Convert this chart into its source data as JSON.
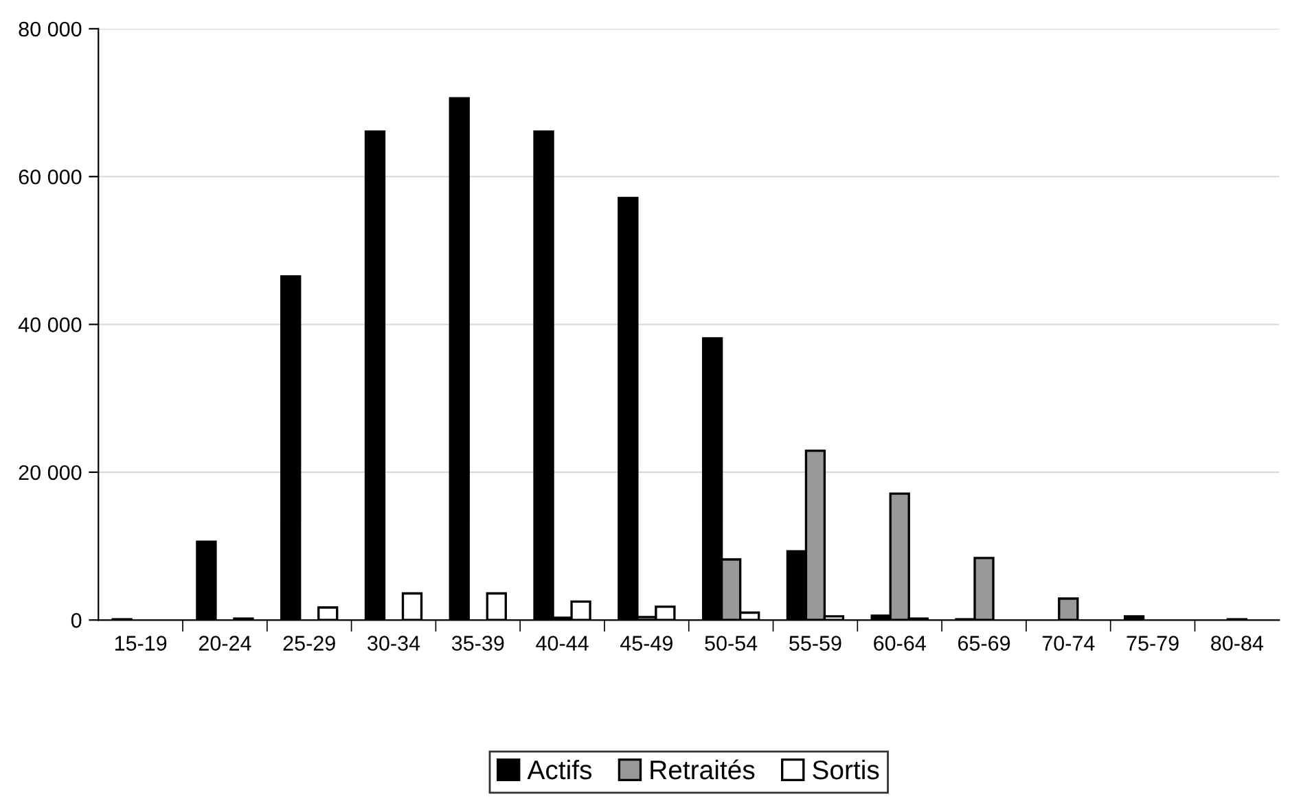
{
  "chart_data": {
    "type": "bar",
    "categories": [
      "15-19",
      "20-24",
      "25-29",
      "30-34",
      "35-39",
      "40-44",
      "45-49",
      "50-54",
      "55-59",
      "60-64",
      "65-69",
      "70-74",
      "75-79",
      "80-84"
    ],
    "series": [
      {
        "name": "Actifs",
        "color": "#000000",
        "values": [
          100,
          10600,
          46500,
          66100,
          70600,
          66100,
          57100,
          38100,
          9300,
          600,
          100,
          null,
          500,
          null
        ]
      },
      {
        "name": "Retraités",
        "color": "#999999",
        "values": [
          null,
          null,
          null,
          null,
          null,
          300,
          400,
          8200,
          22900,
          17100,
          8400,
          2900,
          null,
          100
        ]
      },
      {
        "name": "Sortis",
        "color": "#ffffff",
        "values": [
          null,
          200,
          1700,
          3600,
          3600,
          2500,
          1800,
          1000,
          500,
          200,
          null,
          null,
          null,
          null
        ]
      }
    ],
    "ylim": [
      0,
      80000
    ],
    "yticks": [
      {
        "value": 0,
        "label": "0"
      },
      {
        "value": 20000,
        "label": "20 000"
      },
      {
        "value": 40000,
        "label": "40 000"
      },
      {
        "value": 60000,
        "label": "60 000"
      },
      {
        "value": 80000,
        "label": "80 000"
      }
    ],
    "grid": "y",
    "legend": "bottom"
  }
}
